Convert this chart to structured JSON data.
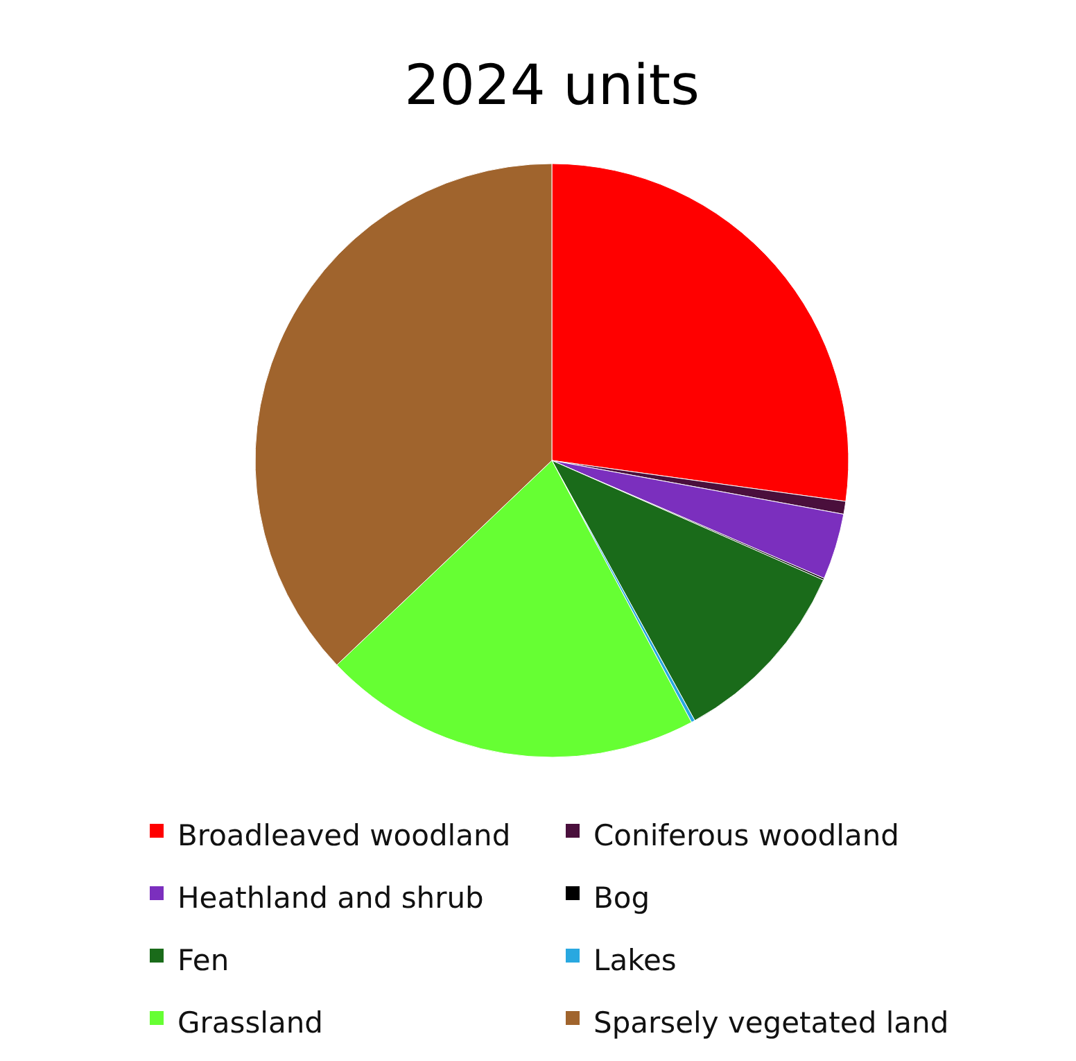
{
  "chart_data": {
    "type": "pie",
    "title": "2024 units",
    "categories": [
      "Broadleaved woodland",
      "Coniferous woodland",
      "Heathland and shrub",
      "Bog",
      "Fen",
      "Lakes",
      "Grassland",
      "Sparsely vegetated land"
    ],
    "values": [
      27.2,
      0.7,
      3.6,
      0.1,
      10.4,
      0.2,
      20.7,
      37.1
    ],
    "colors": [
      "#ff0000",
      "#4a0f3c",
      "#7b2fbe",
      "#000000",
      "#1a6b1a",
      "#29a8e0",
      "#66ff33",
      "#a0642d"
    ],
    "legend": "bottom"
  }
}
